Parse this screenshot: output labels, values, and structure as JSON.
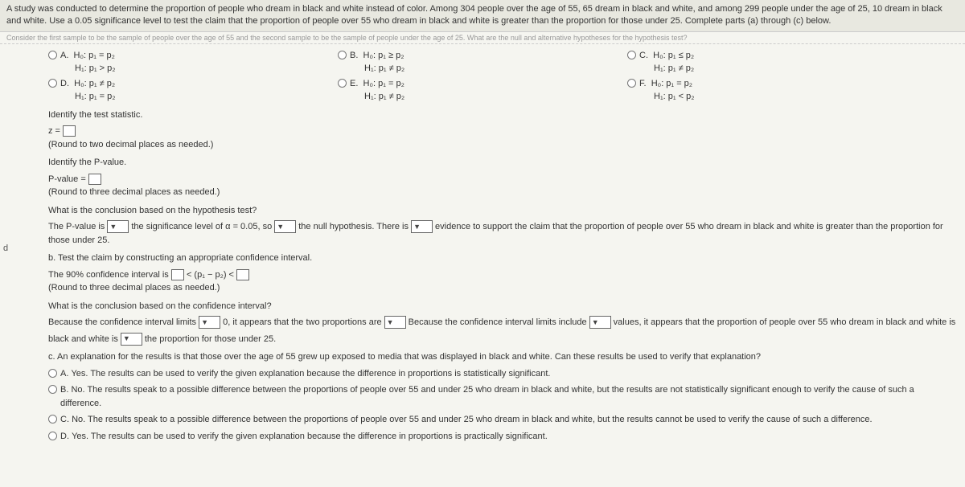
{
  "header": {
    "problem_text": "A study was conducted to determine the proportion of people who dream in black and white instead of color. Among 304 people over the age of 55, 65 dream in black and white, and among 299 people under the age of 25, 10 dream in black and white. Use a 0.05 significance level to test the claim that the proportion of people over 55 who dream in black and white is greater than the proportion for those under 25. Complete parts (a) through (c) below."
  },
  "garbled_line": "Consider the first sample to be the sample of people over the age of 55 and the second sample to be the sample of people under the age of 25. What are the null and alternative hypotheses for the hypothesis test?",
  "options_row1": {
    "A": {
      "label": "A.",
      "line1": "H₀: p₁ = p₂",
      "line2": "H₁: p₁ > p₂"
    },
    "B": {
      "label": "B.",
      "line1": "H₀: p₁ ≥ p₂",
      "line2": "H₁: p₁ ≠ p₂"
    },
    "C": {
      "label": "C.",
      "line1": "H₀: p₁ ≤ p₂",
      "line2": "H₁: p₁ ≠ p₂"
    }
  },
  "options_row2": {
    "D": {
      "label": "D.",
      "line1": "H₀: p₁ ≠ p₂",
      "line2": "H₁: p₁ = p₂"
    },
    "E": {
      "label": "E.",
      "line1": "H₀: p₁ = p₂",
      "line2": "H₁: p₁ ≠ p₂"
    },
    "F": {
      "label": "F.",
      "line1": "H₀: p₁ = p₂",
      "line2": "H₁: p₁ < p₂"
    }
  },
  "stat": {
    "identify": "Identify the test statistic.",
    "z_prefix": "z = ",
    "round": "(Round to two decimal places as needed.)"
  },
  "pvalue": {
    "identify": "Identify the P-value.",
    "prefix": "P-value = ",
    "round": "(Round to three decimal places as needed.)"
  },
  "concl_q": "What is the conclusion based on the hypothesis test?",
  "concl_line": {
    "p1": "The P-value is",
    "p2": "the significance level of α = 0.05, so",
    "p3": "the null hypothesis. There is",
    "p4": "evidence to support the claim that the proportion of people over 55 who dream in black and white is greater than the proportion for those under 25."
  },
  "partb": {
    "intro": "b. Test the claim by constructing an appropriate confidence interval.",
    "ci_prefix": "The 90% confidence interval is ",
    "ci_mid": " < (p₁ − p₂) < ",
    "round": "(Round to three decimal places as needed.)"
  },
  "ci_concl_q": "What is the conclusion based on the confidence interval?",
  "ci_concl": {
    "p1": "Because the confidence interval limits",
    "p2": "0, it appears that the two proportions are",
    "p3": "Because the confidence interval limits include",
    "p4": "values, it appears that the proportion of people over 55 who dream in black and white is",
    "p5": "the proportion for those under 25.",
    "label2": "black and white is"
  },
  "partc": {
    "intro": "c. An explanation for the results is that those over the age of 55 grew up exposed to media that was displayed in black and white. Can these results be used to verify that explanation?",
    "A": "Yes. The results can be used to verify the given explanation because the difference in proportions is statistically significant.",
    "B": "No. The results speak to a possible difference between the proportions of people over 55 and under 25 who dream in black and white, but the results are not statistically significant enough to verify the cause of such a difference.",
    "C": "No. The results speak to a possible difference between the proportions of people over 55 and under 25 who dream in black and white, but the results cannot be used to verify the cause of such a difference.",
    "D": "Yes. The results can be used to verify the given explanation because the difference in proportions is practically significant."
  },
  "letters": {
    "A": "A.",
    "B": "B.",
    "C": "C.",
    "D": "D."
  },
  "side_letter": "d"
}
